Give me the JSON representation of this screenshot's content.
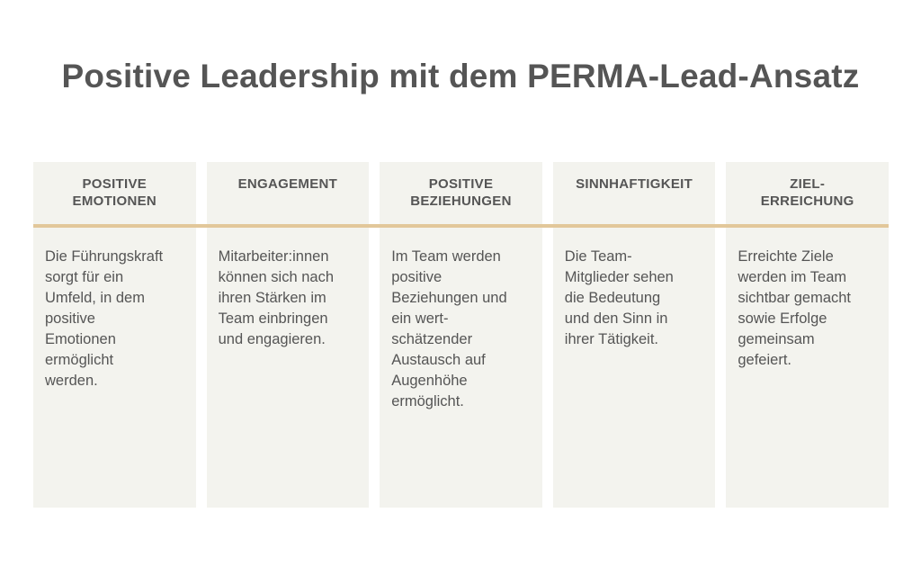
{
  "title": "Positive Leadership mit dem PERMA-Lead-Ansatz",
  "columns": [
    {
      "heading_lines": [
        "POSITIVE",
        "EMOTIONEN"
      ],
      "body_lines": [
        "Die Führungskraft",
        "sorgt für ein",
        "Umfeld, in dem",
        "positive",
        "Emotionen",
        "ermöglicht",
        "werden."
      ]
    },
    {
      "heading_lines": [
        "ENGAGEMENT"
      ],
      "body_lines": [
        "Mitarbeiter:innen",
        "können sich nach",
        "ihren Stärken im",
        "Team einbringen",
        "und engagieren."
      ]
    },
    {
      "heading_lines": [
        "POSITIVE",
        "BEZIEHUNGEN"
      ],
      "body_lines": [
        "Im Team werden",
        "positive",
        "Beziehungen und",
        "ein wert-",
        "schätzender",
        "Austausch auf",
        "Augenhöhe",
        "ermöglicht."
      ]
    },
    {
      "heading_lines": [
        "SINNHAFTIGKEIT"
      ],
      "body_lines": [
        "Die Team-",
        "Mitglieder sehen",
        "die Bedeutung",
        "und den Sinn in",
        "ihrer Tätigkeit."
      ]
    },
    {
      "heading_lines": [
        "ZIEL-",
        "ERREICHUNG"
      ],
      "body_lines": [
        "Erreichte Ziele",
        "werden im Team",
        "sichtbar gemacht",
        "sowie Erfolge",
        "gemeinsam",
        "gefeiert."
      ]
    }
  ],
  "colors": {
    "text": "#555555",
    "panel": "#f3f3ee",
    "divider": "#e2c79a"
  }
}
